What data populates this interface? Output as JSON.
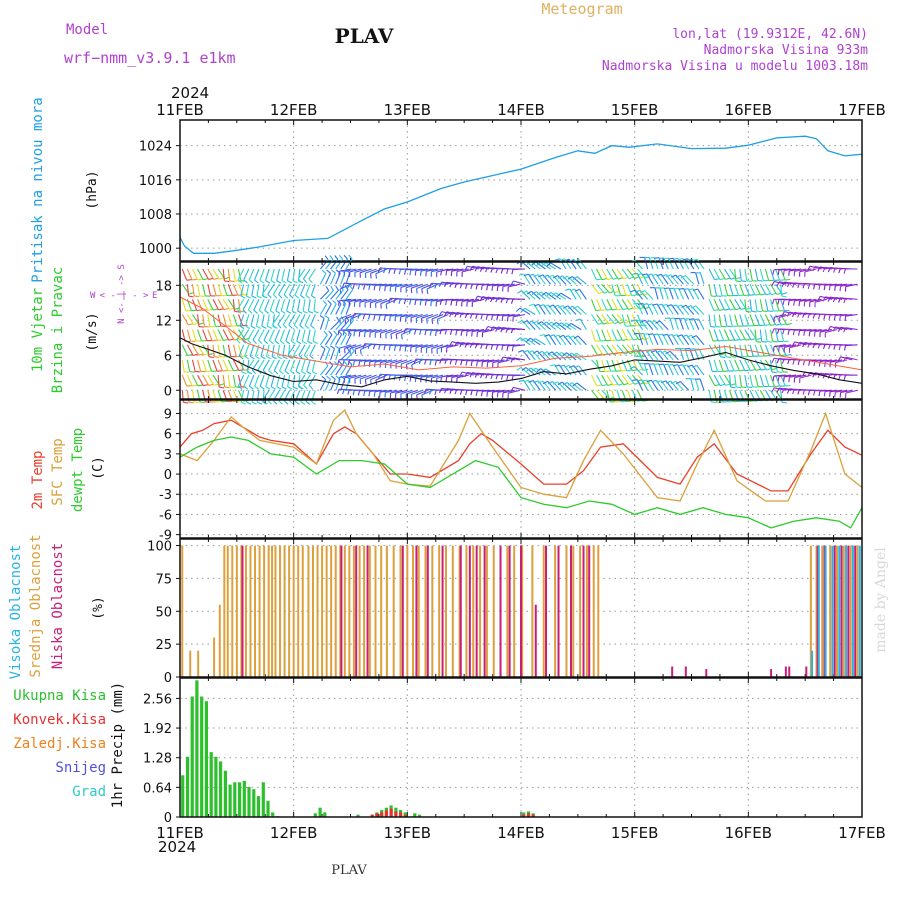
{
  "header": {
    "model_label": "Model",
    "model_name": "wrf−nmm_v3.9.1  e1km",
    "station": "PLAV",
    "product": "Meteogram",
    "lonlat": "lon,lat (19.9312E, 42.6N)",
    "elevation": "Nadmorska Visina 933m",
    "model_elevation": "Nadmorska Visina u modelu 1003.18m",
    "watermark": "made by Angel",
    "footer_station": "PLAV",
    "year": "2024"
  },
  "colors": {
    "pressure": "#1ea0e6",
    "temp2m": "#e8402a",
    "sfc": "#dba03a",
    "dewpt": "#2ccc2c",
    "high_cloud": "#28b4e6",
    "mid_cloud": "#dca03c",
    "low_cloud": "#c81e78",
    "total_precip": "#2cc02c",
    "conv_precip": "#e83030",
    "fz_precip": "#f08020",
    "snow": "#5050e0",
    "hail": "#30c8c8",
    "model_text": "#b040d0"
  },
  "time_axis": {
    "dates": [
      "11FEB",
      "12FEB",
      "13FEB",
      "14FEB",
      "15FEB",
      "16FEB",
      "17FEB"
    ]
  },
  "chart_data": [
    {
      "type": "line",
      "panel": "pressure",
      "ylabel": "Pritisak na nivou mora",
      "unit": "(hPa)",
      "ylim": [
        997,
        1030
      ],
      "yticks": [
        1000,
        1008,
        1016,
        1024
      ],
      "x_days": [
        0,
        0.04,
        0.12,
        0.3,
        0.5,
        0.7,
        1.0,
        1.3,
        1.6,
        1.8,
        2.0,
        2.3,
        2.5,
        2.8,
        3.0,
        3.3,
        3.5,
        3.65,
        3.8,
        3.95,
        4.2,
        4.5,
        4.8,
        5.0,
        5.25,
        5.5,
        5.6,
        5.7,
        5.85,
        6.0
      ],
      "values": [
        1002.5,
        1000.5,
        998.8,
        998.8,
        999.5,
        1000.3,
        1001.8,
        1002.3,
        1006.5,
        1009.2,
        1010.8,
        1014.0,
        1015.5,
        1017.3,
        1018.5,
        1021.2,
        1022.8,
        1022.2,
        1024.0,
        1023.6,
        1024.4,
        1023.3,
        1023.4,
        1024.1,
        1025.8,
        1026.2,
        1025.6,
        1022.8,
        1021.6,
        1022.0
      ],
      "grid": true
    },
    {
      "type": "barbs",
      "panel": "wind",
      "ylabel": "10m Vjetar Brzina i Pravac",
      "unit": "(m/s)",
      "compass": {
        "n": "N",
        "s": "S",
        "e": "E",
        "w": "W"
      },
      "ylim": [
        -1.5,
        22
      ],
      "yticks": [
        0,
        6,
        12,
        18
      ],
      "speed_x_days": [
        0,
        0.1,
        0.25,
        0.4,
        0.5,
        0.6,
        0.8,
        1.0,
        1.2,
        1.4,
        1.6,
        1.8,
        2.0,
        2.2,
        2.4,
        2.6,
        2.8,
        3.0,
        3.2,
        3.4,
        3.6,
        3.8,
        4.0,
        4.2,
        4.4,
        4.6,
        4.8,
        5.0,
        5.2,
        5.4,
        5.6,
        5.8,
        6.0
      ],
      "speed": [
        9,
        8,
        7,
        6,
        5,
        4,
        2.5,
        1.5,
        1.8,
        1,
        0.6,
        1.8,
        2.4,
        1.6,
        1.4,
        1.2,
        1.4,
        2,
        3.2,
        2.8,
        3.6,
        4.2,
        5.2,
        5,
        4.8,
        5.6,
        6.5,
        5.2,
        4.2,
        3.4,
        2.8,
        1.8,
        1.2
      ],
      "gust_x_days": [
        0,
        0.2,
        0.4,
        0.6,
        0.9,
        1.2,
        1.5,
        1.8,
        2.1,
        2.4,
        2.7,
        3.0,
        3.3,
        3.6,
        3.9,
        4.2,
        4.5,
        4.8,
        5.1,
        5.4,
        5.7,
        6.0
      ],
      "gust": [
        16,
        14,
        11,
        8,
        6,
        5,
        4,
        4.5,
        3.5,
        4,
        3.8,
        4.2,
        5.5,
        5.8,
        6.5,
        7,
        6.8,
        7.5,
        6.5,
        5.5,
        4.5,
        3.5
      ]
    },
    {
      "type": "line",
      "panel": "temperature",
      "ylabels": [
        "2m Temp",
        "SFC Temp",
        "dewpt Temp"
      ],
      "unit": "(C)",
      "ylim": [
        -9.5,
        11
      ],
      "yticks": [
        -9,
        -6,
        -3,
        0,
        3,
        6,
        9
      ],
      "series": [
        {
          "name": "2m Temp",
          "color_key": "temp2m",
          "x_days": [
            0,
            0.1,
            0.2,
            0.3,
            0.45,
            0.55,
            0.7,
            0.8,
            1.0,
            1.2,
            1.35,
            1.45,
            1.55,
            1.7,
            1.85,
            2.0,
            2.2,
            2.45,
            2.55,
            2.65,
            2.75,
            3.0,
            3.2,
            3.4,
            3.55,
            3.7,
            3.9,
            4.2,
            4.4,
            4.55,
            4.7,
            4.9,
            5.2,
            5.35,
            5.55,
            5.7,
            5.85,
            6.0
          ],
          "values": [
            4,
            6,
            6.5,
            7.5,
            8,
            7,
            5.5,
            5,
            4.5,
            1.5,
            6,
            7,
            6,
            3,
            0,
            0,
            -0.5,
            2,
            4.5,
            6,
            5,
            1.5,
            -1.5,
            -1.5,
            0.5,
            4,
            4.5,
            -0.5,
            -1.5,
            2.5,
            4.5,
            0,
            -2.5,
            -2.5,
            3,
            6.5,
            4,
            2.8
          ]
        },
        {
          "name": "SFC Temp",
          "color_key": "sfc",
          "x_days": [
            0,
            0.15,
            0.3,
            0.45,
            0.55,
            0.7,
            0.85,
            1.0,
            1.2,
            1.35,
            1.45,
            1.55,
            1.7,
            1.85,
            2.0,
            2.2,
            2.45,
            2.55,
            2.65,
            2.75,
            3.0,
            3.2,
            3.4,
            3.55,
            3.7,
            3.9,
            4.2,
            4.4,
            4.55,
            4.7,
            4.9,
            5.15,
            5.35,
            5.55,
            5.68,
            5.85,
            6.0
          ],
          "values": [
            3,
            2,
            5,
            8.5,
            7,
            5,
            4.5,
            4,
            1.5,
            8,
            9.5,
            6,
            3,
            -1,
            -1.5,
            -1.8,
            5,
            9,
            6.5,
            4,
            -2,
            -3,
            -3.5,
            2,
            6.5,
            3,
            -3.5,
            -4,
            1.5,
            6.5,
            -1,
            -4,
            -4,
            3.5,
            9,
            0,
            -2
          ]
        },
        {
          "name": "dewpt Temp",
          "color_key": "dewpt",
          "x_days": [
            0,
            0.15,
            0.3,
            0.45,
            0.6,
            0.8,
            1.0,
            1.2,
            1.4,
            1.6,
            1.8,
            2.0,
            2.2,
            2.45,
            2.6,
            2.8,
            3.0,
            3.2,
            3.4,
            3.6,
            3.8,
            4.0,
            4.2,
            4.4,
            4.6,
            4.8,
            5.0,
            5.2,
            5.4,
            5.6,
            5.8,
            5.9,
            6.0
          ],
          "values": [
            2.5,
            4,
            5,
            5.5,
            5,
            3,
            2.5,
            0,
            2,
            2,
            1.5,
            -1.5,
            -2,
            0.5,
            2,
            1,
            -3.5,
            -4.5,
            -5,
            -4,
            -4.5,
            -6,
            -5,
            -6,
            -5,
            -6,
            -6.5,
            -8,
            -7,
            -6.5,
            -7,
            -8,
            -5
          ]
        }
      ],
      "grid": true
    },
    {
      "type": "bar",
      "panel": "cloud",
      "ylabels": [
        "Visoka Oblacnost",
        "Srednja Oblacnost",
        "Niska Oblacnost"
      ],
      "unit": "(%)",
      "ylim": [
        0,
        105
      ],
      "yticks": [
        0,
        25,
        50,
        75,
        100
      ],
      "series": [
        {
          "name": "Srednja Oblacnost",
          "color_key": "mid_cloud",
          "x_days": [
            0.02,
            0.09,
            0.16,
            0.3,
            0.35,
            0.39,
            0.42,
            0.46,
            0.5,
            0.54,
            0.58,
            0.62,
            0.66,
            0.7,
            0.74,
            0.78,
            0.81,
            0.84,
            0.88,
            0.92,
            0.96,
            1.0,
            1.04,
            1.08,
            1.13,
            1.17,
            1.21,
            1.25,
            1.29,
            1.33,
            1.37,
            1.41,
            1.45,
            1.49,
            1.53,
            1.58,
            1.62,
            1.67,
            1.72,
            1.77,
            1.82,
            1.88,
            1.94,
            2.0,
            2.05,
            2.1,
            2.16,
            2.22,
            2.28,
            2.34,
            2.4,
            2.46,
            2.52,
            2.58,
            2.64,
            2.7,
            2.76,
            2.82,
            2.88,
            2.94,
            3.01,
            3.1,
            3.2,
            3.3,
            3.4,
            3.46,
            3.52,
            3.58,
            3.64,
            3.68,
            5.55,
            5.6,
            5.65,
            5.72,
            5.78,
            5.84,
            5.9,
            5.96
          ],
          "values": [
            100,
            20,
            20,
            30,
            55,
            100,
            100,
            100,
            100,
            100,
            100,
            100,
            100,
            100,
            100,
            100,
            100,
            100,
            100,
            100,
            100,
            100,
            100,
            100,
            100,
            100,
            100,
            100,
            100,
            100,
            100,
            100,
            100,
            100,
            100,
            100,
            100,
            100,
            100,
            100,
            100,
            100,
            100,
            100,
            100,
            100,
            100,
            100,
            100,
            100,
            100,
            100,
            100,
            100,
            100,
            100,
            100,
            100,
            100,
            100,
            100,
            100,
            100,
            100,
            100,
            100,
            100,
            100,
            100,
            100,
            100,
            100,
            100,
            100,
            100,
            100,
            100,
            100
          ]
        },
        {
          "name": "Niska Oblacnost",
          "color_key": "low_cloud",
          "x_days": [
            0.55,
            1.42,
            1.55,
            1.65,
            1.96,
            2.08,
            2.18,
            2.31,
            2.47,
            2.55,
            2.61,
            2.68,
            2.82,
            2.9,
            3.0,
            3.13,
            3.22,
            3.33,
            3.44,
            3.55,
            3.6,
            4.33,
            4.45,
            4.63,
            5.2,
            5.33,
            5.36,
            5.51,
            5.61,
            5.67,
            5.76,
            5.82,
            5.88,
            5.94
          ],
          "values": [
            100,
            100,
            100,
            100,
            100,
            100,
            100,
            100,
            100,
            100,
            100,
            100,
            100,
            100,
            100,
            55,
            100,
            100,
            100,
            100,
            100,
            8,
            8,
            6,
            6,
            8,
            8,
            8,
            100,
            100,
            100,
            100,
            100,
            100
          ]
        },
        {
          "name": "Visoka Oblacnost",
          "color_key": "high_cloud",
          "x_days": [
            5.56,
            5.62,
            5.68,
            5.74,
            5.8,
            5.86,
            5.92,
            5.98
          ],
          "values": [
            20,
            100,
            100,
            100,
            100,
            100,
            100,
            100
          ]
        }
      ],
      "grid": true
    },
    {
      "type": "bar",
      "panel": "precip",
      "ylabel": "1hr Precip (mm)",
      "legend": [
        "Ukupna Kisa",
        "Konvek.Kisa",
        "Zaledj.Kisa",
        "Snijeg",
        "Grad"
      ],
      "ylim": [
        0,
        3.0
      ],
      "yticks": [
        0,
        0.64,
        1.28,
        1.92,
        2.56
      ],
      "hourly_start_day": 0.0,
      "series": [
        {
          "name": "Ukupna Kisa",
          "color_key": "total_precip",
          "values": [
            0.9,
            1.3,
            2.6,
            2.95,
            2.6,
            2.5,
            1.4,
            1.3,
            1.2,
            1.0,
            0.7,
            0.75,
            0.75,
            0.78,
            0.65,
            0.6,
            0.45,
            0.75,
            0.35,
            0.1,
            0.02,
            0,
            0,
            0,
            0,
            0,
            0,
            0,
            0.08,
            0.2,
            0.1,
            0,
            0,
            0,
            0,
            0,
            0,
            0.05,
            0,
            0,
            0.05,
            0.1,
            0.15,
            0.2,
            0.25,
            0.2,
            0.15,
            0.1,
            0,
            0.08,
            0.05,
            0,
            0,
            0,
            0,
            0,
            0,
            0,
            0,
            0,
            0,
            0,
            0,
            0,
            0,
            0,
            0,
            0,
            0,
            0,
            0,
            0,
            0.1,
            0.12,
            0.08
          ]
        },
        {
          "name": "Konvek.Kisa",
          "color_key": "conv_precip",
          "values": [
            0,
            0,
            0,
            0,
            0,
            0,
            0,
            0,
            0,
            0,
            0,
            0,
            0,
            0,
            0,
            0,
            0,
            0,
            0,
            0,
            0,
            0,
            0,
            0,
            0,
            0,
            0,
            0,
            0,
            0,
            0,
            0,
            0,
            0,
            0,
            0,
            0,
            0,
            0,
            0,
            0.05,
            0.08,
            0.1,
            0.14,
            0.18,
            0.12,
            0.1,
            0.05,
            0,
            0,
            0,
            0,
            0,
            0,
            0,
            0,
            0,
            0,
            0,
            0,
            0,
            0,
            0,
            0,
            0,
            0,
            0,
            0,
            0,
            0,
            0,
            0,
            0.05,
            0.08,
            0.05
          ]
        }
      ],
      "grid": true
    }
  ]
}
